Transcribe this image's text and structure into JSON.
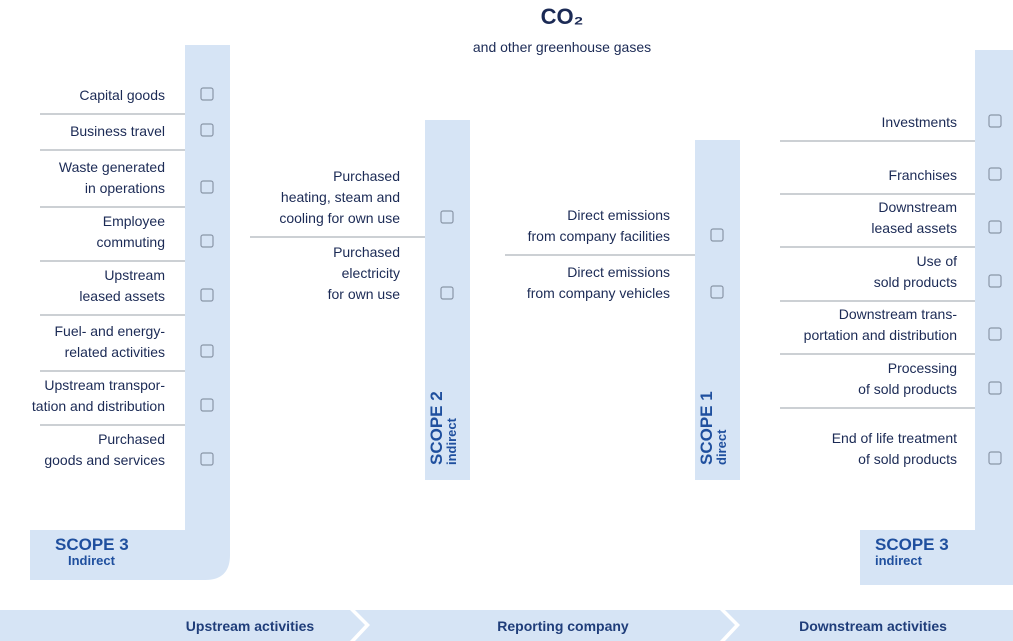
{
  "header": {
    "title": "CO₂",
    "subtitle": "and other greenhouse gases"
  },
  "scope3_upstream": {
    "label": "SCOPE 3",
    "sublabel": "Indirect",
    "items": [
      [
        "Capital goods"
      ],
      [
        "Business travel"
      ],
      [
        "Waste generated",
        "in operations"
      ],
      [
        "Employee",
        "commuting"
      ],
      [
        "Upstream",
        "leased assets"
      ],
      [
        "Fuel- and energy-",
        "related activities"
      ],
      [
        "Upstream transpor-",
        "tation and distribution"
      ],
      [
        "Purchased",
        "goods and services"
      ]
    ]
  },
  "scope2": {
    "label": "SCOPE 2",
    "sublabel": "indirect",
    "items": [
      [
        "Purchased",
        "heating, steam and",
        "cooling for own use"
      ],
      [
        "Purchased",
        "electricity",
        "for own use"
      ]
    ]
  },
  "scope1": {
    "label": "SCOPE 1",
    "sublabel": "direct",
    "items": [
      [
        "Direct emissions",
        "from company facilities"
      ],
      [
        "Direct emissions",
        "from company vehicles"
      ]
    ]
  },
  "scope3_downstream": {
    "label": "SCOPE 3",
    "sublabel": "indirect",
    "items": [
      [
        "Investments"
      ],
      [
        "Franchises"
      ],
      [
        "Downstream",
        "leased assets"
      ],
      [
        "Use of",
        "sold products"
      ],
      [
        "Downstream trans-",
        "portation and distribution"
      ],
      [
        "Processing",
        "of sold products"
      ],
      [
        "End of life treatment",
        "of sold products"
      ]
    ]
  },
  "footer": {
    "stages": [
      "Upstream activities",
      "Reporting company",
      "Downstream activities"
    ]
  }
}
